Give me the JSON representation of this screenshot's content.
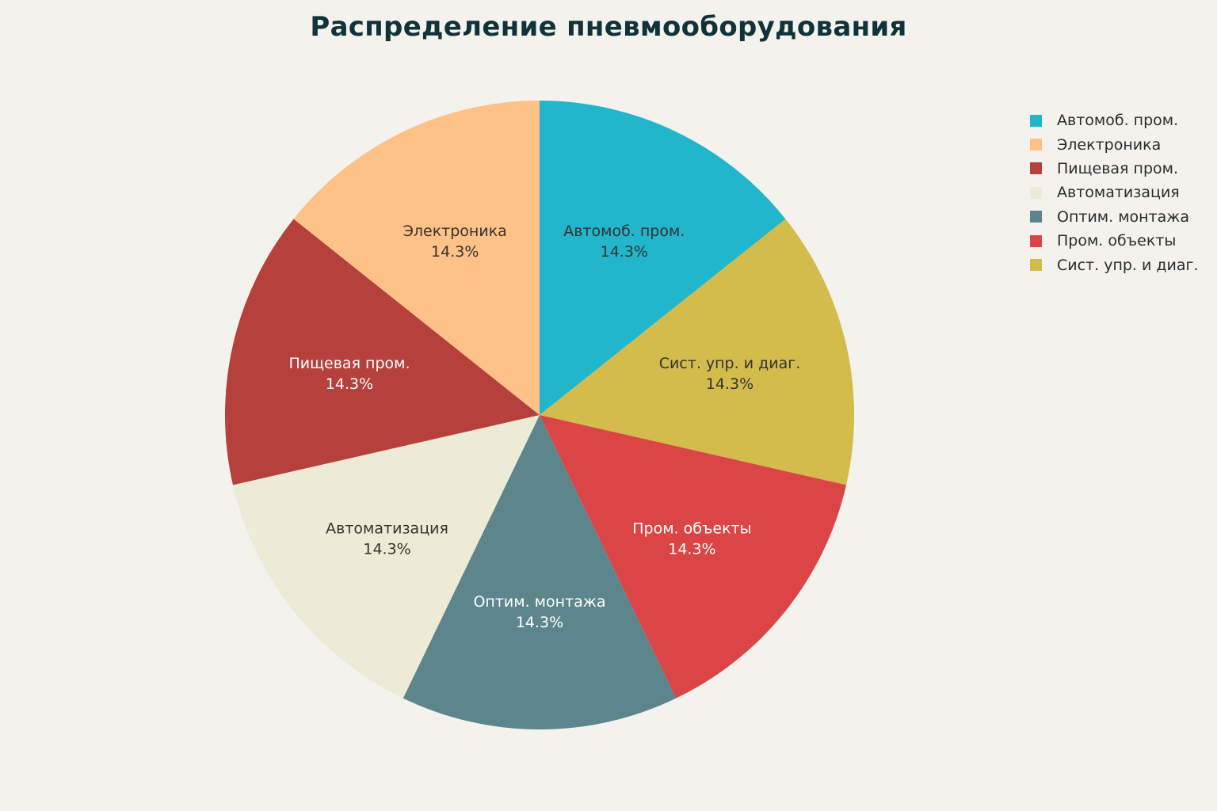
{
  "chart_data": {
    "type": "pie",
    "title": "Распределение пневмооборудования",
    "legend_position": "top-right",
    "slices": [
      {
        "label": "Автомоб. пром.",
        "value": 14.3,
        "display": "14.3%",
        "color": "#21b6cb",
        "text_color": "#333333"
      },
      {
        "label": "Сист. упр. и диаг.",
        "value": 14.3,
        "display": "14.3%",
        "color": "#d3bb4c",
        "text_color": "#333333"
      },
      {
        "label": "Пром. объекты",
        "value": 14.3,
        "display": "14.3%",
        "color": "#db4545",
        "text_color": "#ffffff"
      },
      {
        "label": "Оптим. монтажа",
        "value": 14.3,
        "display": "14.3%",
        "color": "#5d868c",
        "text_color": "#ffffff"
      },
      {
        "label": "Автоматизация",
        "value": 14.3,
        "display": "14.3%",
        "color": "#edebd6",
        "text_color": "#333333"
      },
      {
        "label": "Пищевая пром.",
        "value": 14.3,
        "display": "14.3%",
        "color": "#b5403c",
        "text_color": "#ffffff"
      },
      {
        "label": "Электроника",
        "value": 14.3,
        "display": "14.3%",
        "color": "#fec187",
        "text_color": "#333333"
      }
    ],
    "legend": [
      {
        "label": "Автомоб. пром.",
        "color": "#21b6cb"
      },
      {
        "label": "Электроника",
        "color": "#fec187"
      },
      {
        "label": "Пищевая пром.",
        "color": "#b5403c"
      },
      {
        "label": "Автоматизация",
        "color": "#edebd6"
      },
      {
        "label": "Оптим. монтажа",
        "color": "#5d868c"
      },
      {
        "label": "Пром. объекты",
        "color": "#db4545"
      },
      {
        "label": "Сист. упр. и диаг.",
        "color": "#d3bb4c"
      }
    ]
  }
}
